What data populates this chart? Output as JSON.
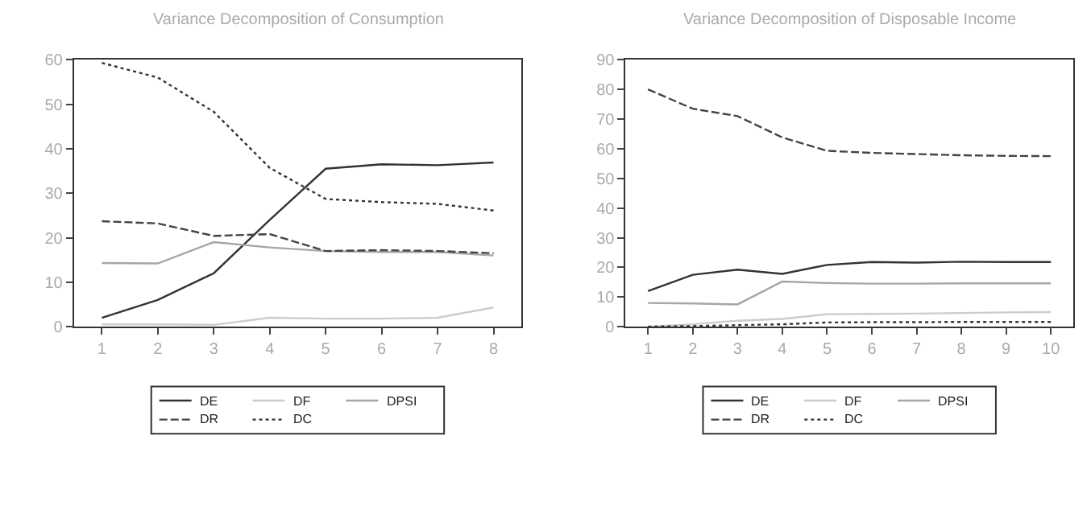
{
  "chart_data": [
    {
      "type": "line",
      "title": "Variance Decomposition of Consumption",
      "x": [
        1,
        2,
        3,
        4,
        5,
        6,
        7,
        8
      ],
      "xlim": [
        0.5,
        8.5
      ],
      "xticks": [
        1,
        2,
        3,
        4,
        5,
        6,
        7,
        8
      ],
      "ylim": [
        0,
        60
      ],
      "yticks": [
        0,
        10,
        20,
        30,
        40,
        50,
        60
      ],
      "legend": "bottom",
      "series": [
        {
          "name": "DE",
          "color": "#333333",
          "line_style": "solid",
          "values": [
            2,
            6,
            12,
            24,
            35.5,
            36.5,
            36.3,
            36.9
          ]
        },
        {
          "name": "DF",
          "color": "#cccccc",
          "line_style": "solid",
          "values": [
            0.5,
            0.5,
            0.4,
            2,
            1.8,
            1.8,
            2,
            4.3
          ]
        },
        {
          "name": "DPSI",
          "color": "#a6a6a6",
          "line_style": "solid",
          "values": [
            14.3,
            14.2,
            19,
            17.8,
            17,
            16.8,
            16.8,
            16
          ]
        },
        {
          "name": "DR",
          "color": "#444444",
          "line_style": "dashed",
          "values": [
            23.7,
            23.2,
            20.4,
            20.8,
            17,
            17.2,
            17,
            16.5
          ]
        },
        {
          "name": "DC",
          "color": "#333333",
          "line_style": "dotted",
          "values": [
            59.3,
            56,
            48.3,
            35.7,
            28.7,
            28,
            27.6,
            26.1
          ]
        }
      ]
    },
    {
      "type": "line",
      "title": "Variance Decomposition of Disposable Income",
      "x": [
        1,
        2,
        3,
        4,
        5,
        6,
        7,
        8,
        9,
        10
      ],
      "xlim": [
        0.5,
        10.5
      ],
      "xticks": [
        1,
        2,
        3,
        4,
        5,
        6,
        7,
        8,
        9,
        10
      ],
      "ylim": [
        0,
        90
      ],
      "yticks": [
        0,
        10,
        20,
        30,
        40,
        50,
        60,
        70,
        80,
        90
      ],
      "legend": "bottom",
      "series": [
        {
          "name": "DE",
          "color": "#333333",
          "line_style": "solid",
          "values": [
            12,
            17.5,
            19.2,
            17.8,
            20.8,
            21.8,
            21.6,
            21.9,
            21.8,
            21.8
          ]
        },
        {
          "name": "DF",
          "color": "#cccccc",
          "line_style": "solid",
          "values": [
            0,
            0.8,
            2,
            2.6,
            4.2,
            4.3,
            4.4,
            4.6,
            4.8,
            4.9
          ]
        },
        {
          "name": "DPSI",
          "color": "#a6a6a6",
          "line_style": "solid",
          "values": [
            8,
            7.8,
            7.5,
            15.2,
            14.7,
            14.5,
            14.5,
            14.6,
            14.6,
            14.6
          ]
        },
        {
          "name": "DR",
          "color": "#444444",
          "line_style": "dashed",
          "values": [
            80,
            73.5,
            71,
            63.8,
            59.3,
            58.6,
            58.2,
            57.8,
            57.6,
            57.5
          ]
        },
        {
          "name": "DC",
          "color": "#333333",
          "line_style": "dotted",
          "values": [
            0,
            0.2,
            0.5,
            0.8,
            1.4,
            1.5,
            1.5,
            1.6,
            1.6,
            1.6
          ]
        }
      ]
    }
  ]
}
